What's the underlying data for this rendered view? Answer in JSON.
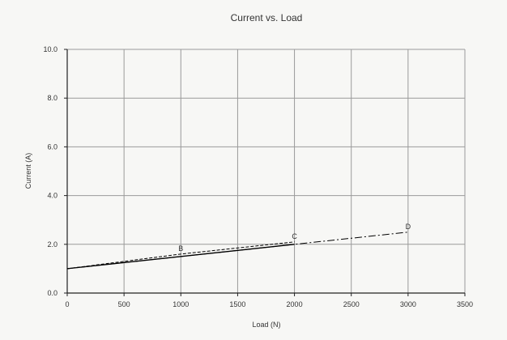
{
  "chart_data": {
    "type": "line",
    "title": "Current vs. Load",
    "xlabel": "Load (N)",
    "ylabel": "Current (A)",
    "xlim": [
      0,
      3500
    ],
    "ylim": [
      0,
      10
    ],
    "xticks": [
      0,
      500,
      1000,
      1500,
      2000,
      2500,
      3000,
      3500
    ],
    "xtick_labels": [
      "0",
      "500",
      "1000",
      "1500",
      "2000",
      "2500",
      "3000",
      "3500"
    ],
    "yticks": [
      0,
      2,
      4,
      6,
      8,
      10
    ],
    "ytick_labels": [
      "0.0",
      "2.0",
      "4.0",
      "6.0",
      "8.0",
      "10.0"
    ],
    "grid": true,
    "series": [
      {
        "style": "solid",
        "color": "#000000",
        "points": [
          {
            "x": 0,
            "y": 1.0
          },
          {
            "x": 2000,
            "y": 2.0
          }
        ]
      },
      {
        "style": "dashed",
        "color": "#000000",
        "points": [
          {
            "x": 0,
            "y": 1.0
          },
          {
            "x": 1000,
            "y": 1.6
          },
          {
            "x": 2000,
            "y": 2.1
          }
        ]
      },
      {
        "style": "dashdot",
        "color": "#000000",
        "points": [
          {
            "x": 0,
            "y": 1.0
          },
          {
            "x": 1000,
            "y": 1.5
          },
          {
            "x": 3000,
            "y": 2.5
          }
        ]
      }
    ],
    "point_labels": [
      {
        "text": "B",
        "x": 1000,
        "y": 1.6
      },
      {
        "text": "C",
        "x": 2000,
        "y": 2.1
      },
      {
        "text": "D",
        "x": 3000,
        "y": 2.5
      }
    ]
  }
}
